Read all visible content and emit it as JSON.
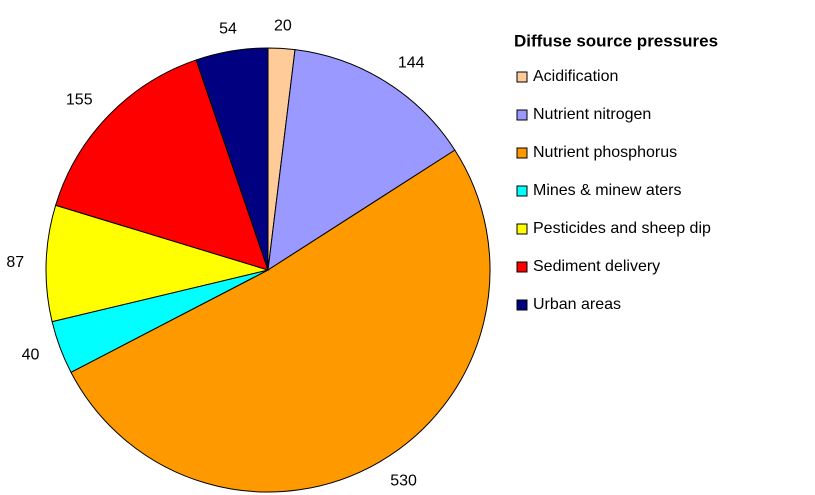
{
  "chart_data": {
    "type": "pie",
    "legend_title": "Diffuse source pressures",
    "categories": [
      "Acidification",
      "Nutrient nitrogen",
      "Nutrient phosphorus",
      "Mines & minew aters",
      "Pesticides and sheep dip",
      "Sediment delivery",
      "Urban areas"
    ],
    "values": [
      20,
      144,
      530,
      40,
      87,
      155,
      54
    ],
    "colors": [
      "#ffcc99",
      "#9999ff",
      "#ff9900",
      "#00ffff",
      "#ffff00",
      "#ff0000",
      "#000080"
    ],
    "legend": "right"
  }
}
